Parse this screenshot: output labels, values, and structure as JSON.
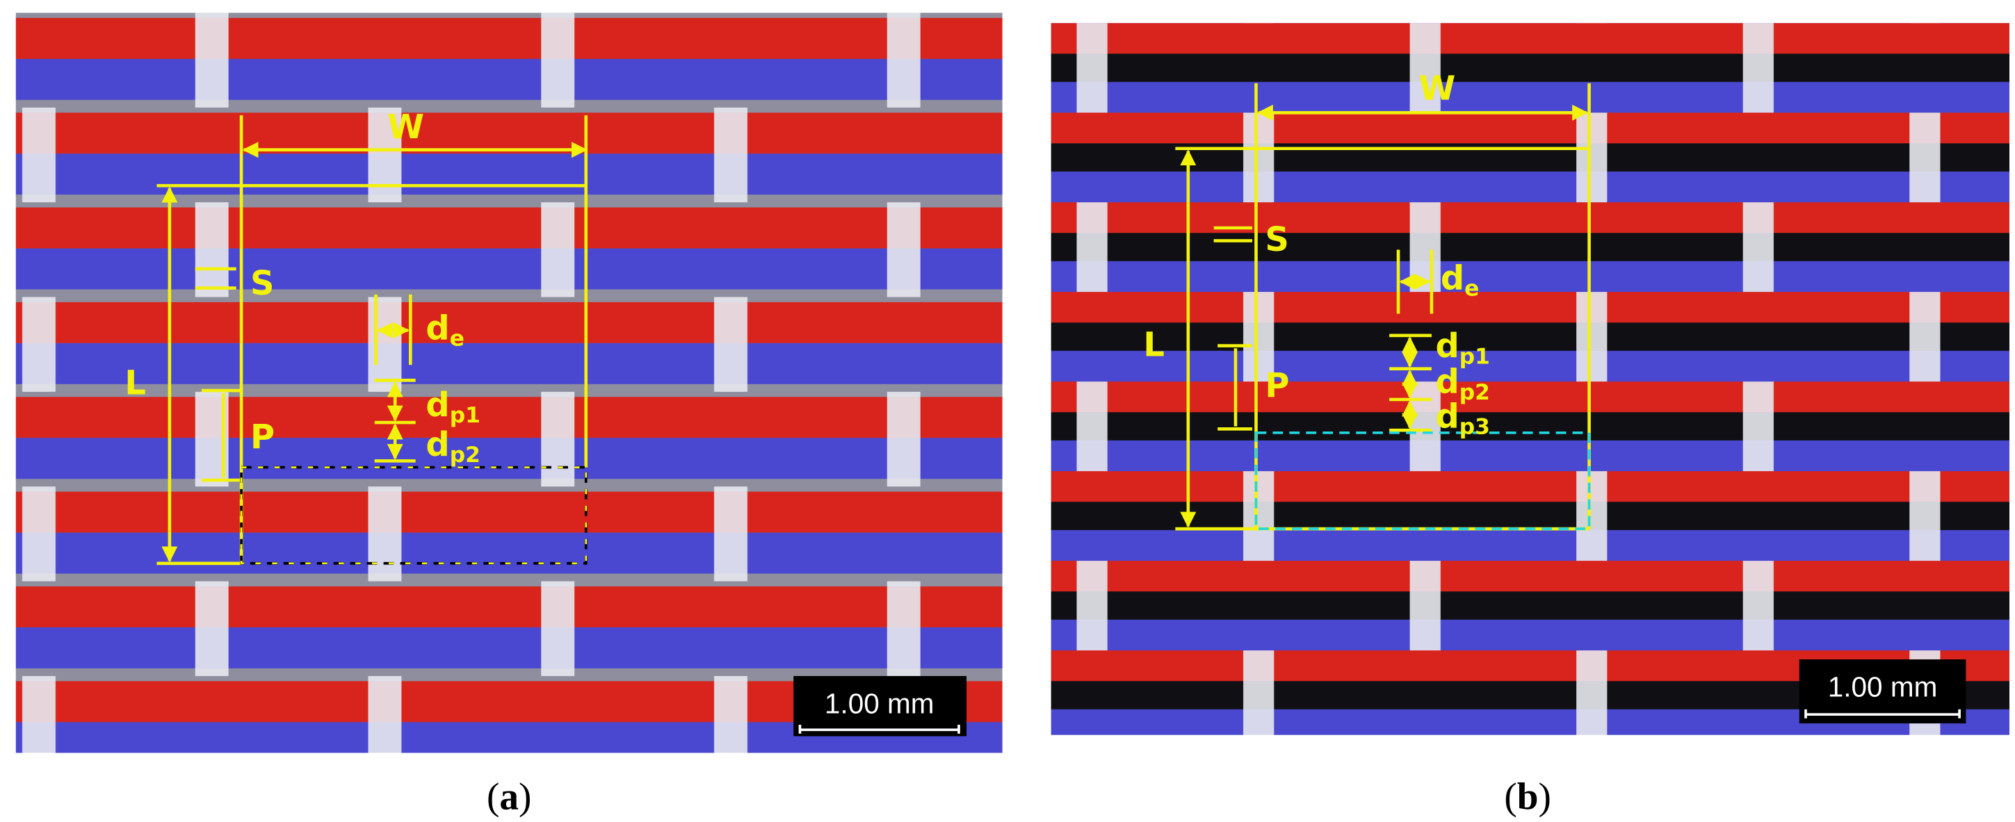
{
  "panels": [
    {
      "caption": [
        "(",
        "a",
        ")"
      ],
      "scale_bar": "1.00 mm",
      "labels": {
        "W": "W",
        "L": "L",
        "S": "S",
        "P": "P"
      },
      "d_e": {
        "main": "d",
        "sub": "e"
      },
      "d_p": [
        {
          "main": "d",
          "sub": "p1"
        },
        {
          "main": "d",
          "sub": "p2"
        }
      ]
    },
    {
      "caption": [
        "(",
        "b",
        ")"
      ],
      "scale_bar": "1.00 mm",
      "labels": {
        "W": "W",
        "L": "L",
        "S": "S",
        "P": "P"
      },
      "d_e": {
        "main": "d",
        "sub": "e"
      },
      "d_p": [
        {
          "main": "d",
          "sub": "p1"
        },
        {
          "main": "d",
          "sub": "p2"
        },
        {
          "main": "d",
          "sub": "p3"
        }
      ]
    }
  ]
}
